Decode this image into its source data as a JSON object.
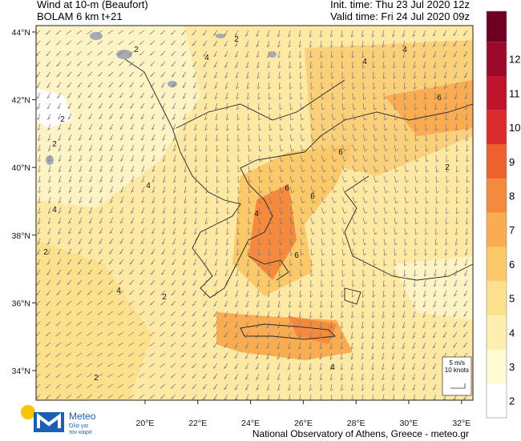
{
  "header": {
    "title": "Wind at 10-m (Beaufort)",
    "model": "BOLAM 6 km t+21",
    "init_time": "Init. time: Thu 23 Jul 2020 12z",
    "valid_time": "Valid time: Fri 24 Jul 2020 09z"
  },
  "map": {
    "lat_ticks": [
      {
        "value": 44,
        "label": "44°N"
      },
      {
        "value": 42,
        "label": "42°N"
      },
      {
        "value": 40,
        "label": "40°N"
      },
      {
        "value": 38,
        "label": "38°N"
      },
      {
        "value": 36,
        "label": "36°N"
      },
      {
        "value": 34,
        "label": "34°N"
      }
    ],
    "lon_ticks": [
      {
        "value": 20,
        "label": "20°E"
      },
      {
        "value": 22,
        "label": "22°E"
      },
      {
        "value": 24,
        "label": "24°E"
      },
      {
        "value": 26,
        "label": "26°E"
      },
      {
        "value": 28,
        "label": "28°E"
      },
      {
        "value": 30,
        "label": "30°E"
      },
      {
        "value": 32,
        "label": "32°E"
      }
    ],
    "contour_labels": [
      "2",
      "4",
      "2",
      "4",
      "4",
      "6",
      "2",
      "2",
      "4",
      "6",
      "6",
      "6",
      "2",
      "4",
      "4",
      "2",
      "4",
      "6",
      "2",
      "4",
      "2",
      "4"
    ],
    "scale_box": {
      "speed": "5 m/s",
      "knots": "10 knots"
    }
  },
  "colorbar": {
    "levels": [
      {
        "label": "2",
        "color": "#ffffff"
      },
      {
        "label": "3",
        "color": "#fffbd2"
      },
      {
        "label": "4",
        "color": "#feeeb0"
      },
      {
        "label": "5",
        "color": "#fde08c"
      },
      {
        "label": "6",
        "color": "#fbc86a"
      },
      {
        "label": "7",
        "color": "#f9ac52"
      },
      {
        "label": "8",
        "color": "#f5893e"
      },
      {
        "label": "9",
        "color": "#ee612f"
      },
      {
        "label": "10",
        "color": "#dc2c2a"
      },
      {
        "label": "11",
        "color": "#c0142e"
      },
      {
        "label": "12",
        "color": "#9c0a2b"
      }
    ],
    "top_color": "#6e0022"
  },
  "footer": {
    "logo_name": "Meteo",
    "logo_tagline_1": "Όλα για",
    "logo_tagline_2": "τον καιρό",
    "credit": "National Observatory of Athens, Greece - meteo.gr"
  }
}
